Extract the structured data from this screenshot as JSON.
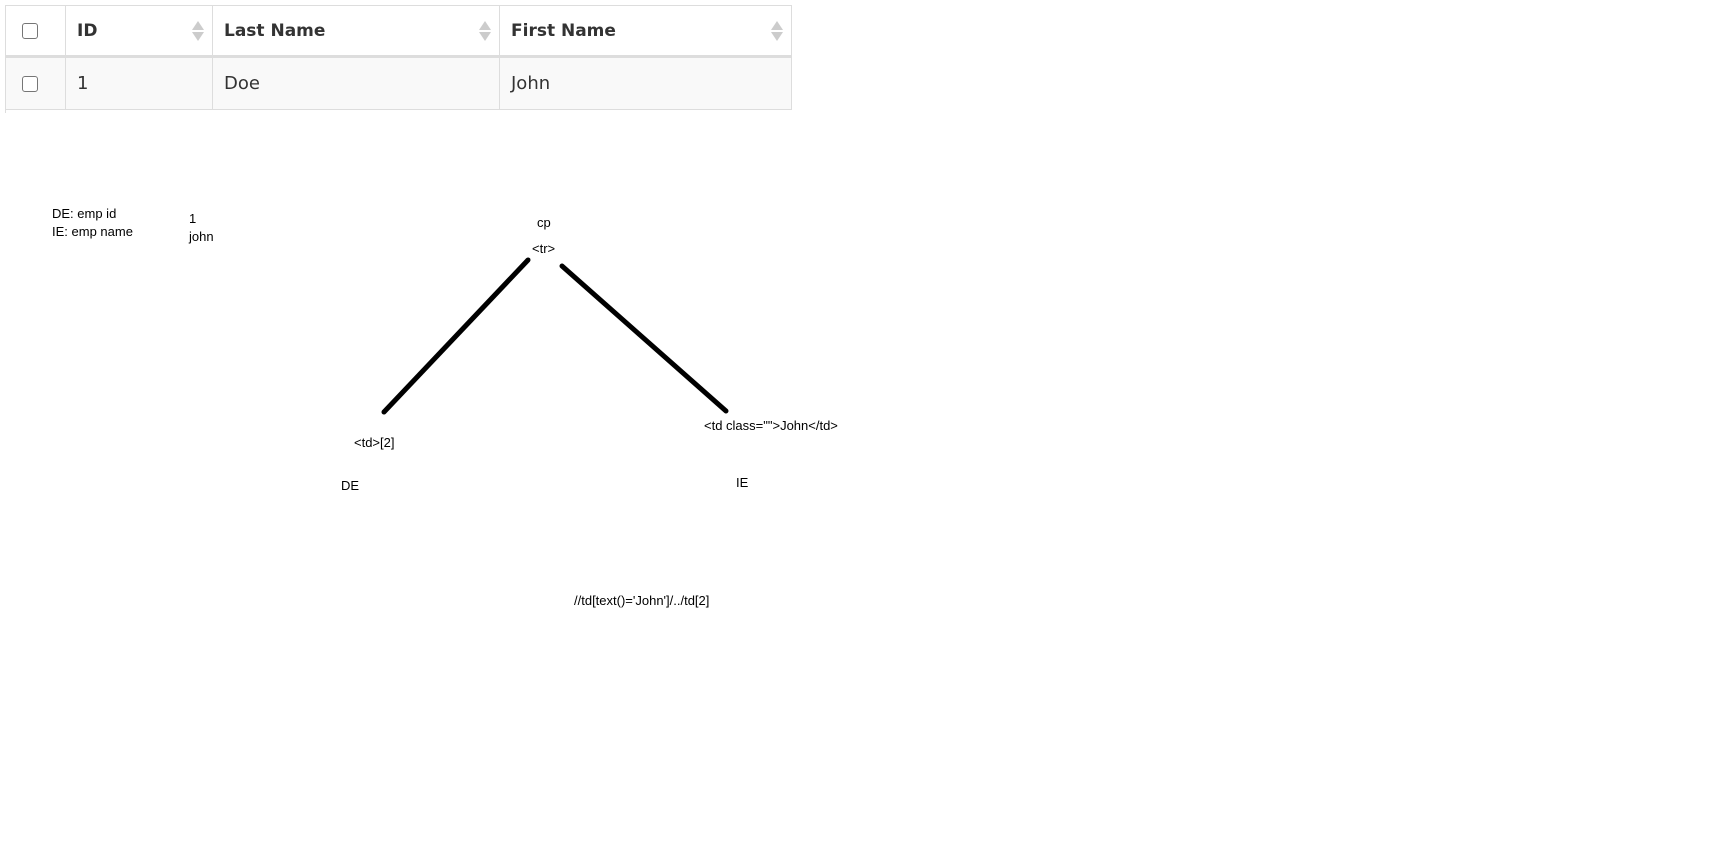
{
  "table": {
    "headers": {
      "id": "ID",
      "last_name": "Last Name",
      "first_name": "First Name"
    },
    "rows": [
      {
        "id": "1",
        "last_name": "Doe",
        "first_name": "John"
      }
    ]
  },
  "notes": {
    "de_label": "DE: emp id",
    "ie_label": "IE: emp name",
    "value_id": "1",
    "value_name": "john",
    "cp": "cp",
    "tr_tag": "<tr>",
    "td_left": "<td>[2]",
    "td_right": "<td class=\"\">John</td>",
    "de": "DE",
    "ie": "IE",
    "xpath": "//td[text()='John']/../td[2]"
  },
  "colors": {
    "border": "#dddddd",
    "row_bg": "#f9f9f9",
    "ink": "#000000"
  }
}
